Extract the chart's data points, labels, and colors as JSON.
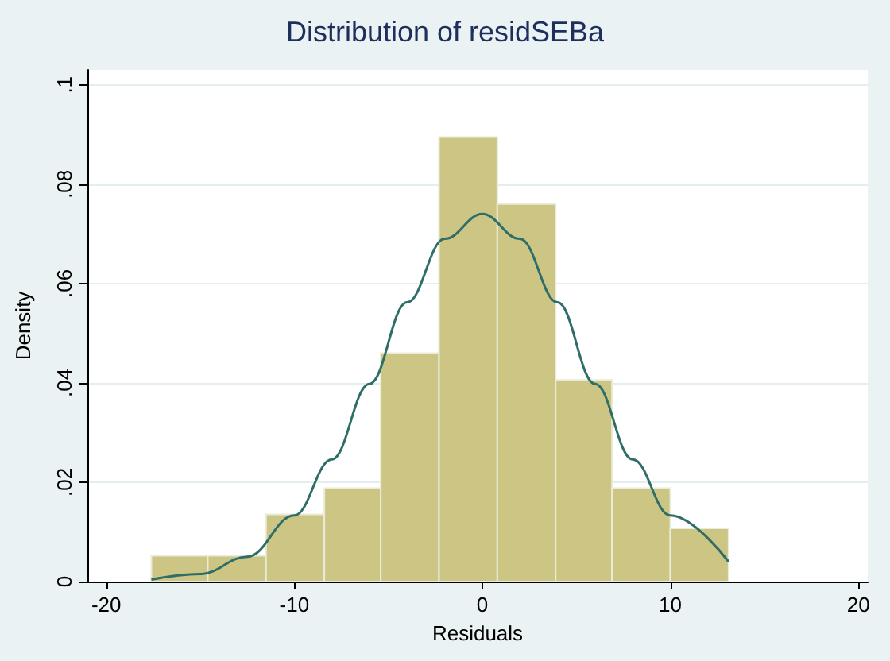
{
  "chart_data": {
    "type": "histogram",
    "title": "Distribution of residSEBa",
    "xlabel": "Residuals",
    "ylabel": "Density",
    "bins": [
      -17.6,
      -14.6,
      -11.5,
      -8.4,
      -5.4,
      -2.3,
      0.8,
      3.9,
      6.9,
      10.0,
      13.1
    ],
    "values": [
      0.0052,
      0.0052,
      0.0135,
      0.0188,
      0.046,
      0.0895,
      0.076,
      0.0406,
      0.0188,
      0.0107
    ],
    "color": "#cdc584",
    "series": [
      {
        "type": "line",
        "color": "#2f6e68",
        "marker": "none",
        "x": [
          -17.6,
          -15,
          -12.5,
          -10,
          -8,
          -6,
          -4,
          -2,
          0,
          2,
          4,
          6,
          8,
          10,
          13.1
        ],
        "values": [
          0.0004,
          0.0015,
          0.005,
          0.0133,
          0.0246,
          0.0398,
          0.0562,
          0.069,
          0.074,
          0.069,
          0.0562,
          0.0398,
          0.0246,
          0.0133,
          0.004
        ]
      }
    ],
    "xlim": [
      -21,
      20.5
    ],
    "xticks": [
      -20,
      -10,
      0,
      10,
      20
    ],
    "ylim": [
      0,
      0.103
    ],
    "yticks": [
      {
        "value": 0,
        "label": "0"
      },
      {
        "value": 0.02,
        "label": ".02"
      },
      {
        "value": 0.04,
        "label": ".04"
      },
      {
        "value": 0.06,
        "label": ".06"
      },
      {
        "value": 0.08,
        "label": ".08"
      },
      {
        "value": 0.1,
        "label": ".1"
      }
    ],
    "grid": "y"
  }
}
